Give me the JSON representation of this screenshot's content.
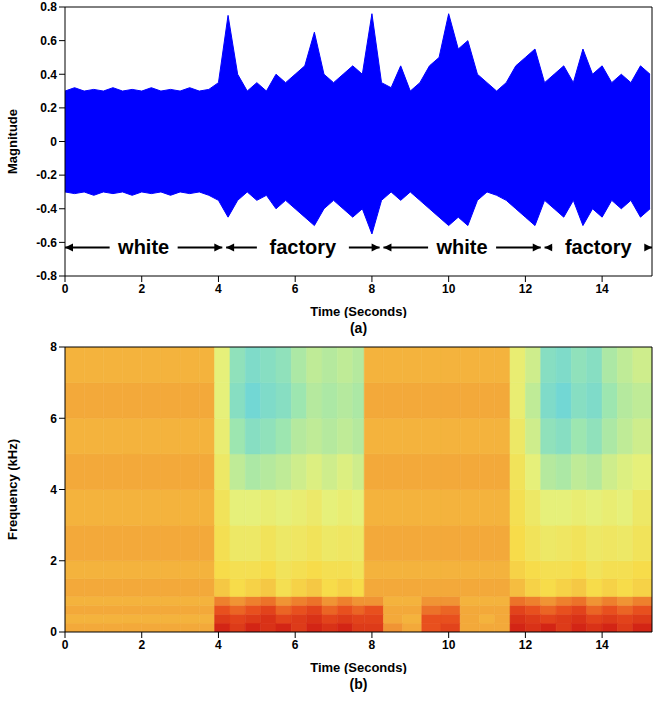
{
  "chart_data": [
    {
      "type": "area",
      "x_label": "Time (Seconds)",
      "y_label": "Magnitude",
      "caption": "(a)",
      "color": "#0000ff",
      "x": [
        0,
        0.25,
        0.5,
        0.75,
        1,
        1.25,
        1.5,
        1.75,
        2,
        2.25,
        2.5,
        2.75,
        3,
        3.25,
        3.5,
        3.75,
        4,
        4.25,
        4.5,
        4.75,
        5,
        5.25,
        5.5,
        5.75,
        6,
        6.25,
        6.5,
        6.75,
        7,
        7.25,
        7.5,
        7.75,
        8,
        8.25,
        8.5,
        8.75,
        9,
        9.25,
        9.5,
        9.75,
        10,
        10.25,
        10.5,
        10.75,
        11,
        11.25,
        11.5,
        11.75,
        12,
        12.25,
        12.5,
        12.75,
        13,
        13.25,
        13.5,
        13.75,
        14,
        14.25,
        14.5,
        14.75,
        15,
        15.25
      ],
      "upper": [
        0.3,
        0.32,
        0.3,
        0.31,
        0.3,
        0.32,
        0.3,
        0.31,
        0.3,
        0.32,
        0.3,
        0.31,
        0.3,
        0.32,
        0.3,
        0.31,
        0.35,
        0.75,
        0.4,
        0.3,
        0.35,
        0.3,
        0.4,
        0.35,
        0.4,
        0.45,
        0.65,
        0.4,
        0.35,
        0.4,
        0.45,
        0.4,
        0.76,
        0.35,
        0.32,
        0.45,
        0.3,
        0.35,
        0.45,
        0.5,
        0.76,
        0.55,
        0.6,
        0.4,
        0.35,
        0.3,
        0.35,
        0.45,
        0.5,
        0.55,
        0.35,
        0.4,
        0.45,
        0.35,
        0.55,
        0.4,
        0.45,
        0.35,
        0.4,
        0.35,
        0.45,
        0.4
      ],
      "lower": [
        -0.3,
        -0.31,
        -0.3,
        -0.32,
        -0.3,
        -0.31,
        -0.3,
        -0.32,
        -0.3,
        -0.31,
        -0.3,
        -0.32,
        -0.3,
        -0.31,
        -0.3,
        -0.32,
        -0.35,
        -0.45,
        -0.35,
        -0.3,
        -0.35,
        -0.32,
        -0.4,
        -0.35,
        -0.4,
        -0.45,
        -0.5,
        -0.4,
        -0.35,
        -0.4,
        -0.45,
        -0.4,
        -0.55,
        -0.35,
        -0.3,
        -0.35,
        -0.3,
        -0.35,
        -0.4,
        -0.45,
        -0.5,
        -0.45,
        -0.5,
        -0.35,
        -0.3,
        -0.32,
        -0.35,
        -0.4,
        -0.45,
        -0.5,
        -0.35,
        -0.4,
        -0.45,
        -0.35,
        -0.5,
        -0.4,
        -0.45,
        -0.35,
        -0.4,
        -0.35,
        -0.45,
        -0.4
      ],
      "xlim": [
        0,
        15.3
      ],
      "xticks": [
        0,
        2,
        4,
        6,
        8,
        10,
        12,
        14
      ],
      "ylim": [
        -0.8,
        0.8
      ],
      "yticks": [
        -0.8,
        -0.6,
        -0.4,
        -0.2,
        0,
        0.2,
        0.4,
        0.6,
        0.8
      ],
      "annotations": [
        {
          "text": "white",
          "x0": 0,
          "x1": 4.1,
          "y": -0.63
        },
        {
          "text": "factory",
          "x0": 4.2,
          "x1": 8.2,
          "y": -0.63
        },
        {
          "text": "white",
          "x0": 8.3,
          "x1": 12.4,
          "y": -0.63
        },
        {
          "text": "factory",
          "x0": 12.5,
          "x1": 15.3,
          "y": -0.63
        }
      ]
    },
    {
      "type": "heatmap",
      "x_label": "Time (Seconds)",
      "y_label": "Frequency (kHz)",
      "caption": "(b)",
      "xlim": [
        0,
        15.3
      ],
      "xticks": [
        0,
        2,
        4,
        6,
        8,
        10,
        12,
        14
      ],
      "ylim": [
        0,
        8
      ],
      "yticks": [
        0,
        2,
        4,
        6,
        8
      ],
      "clim": [
        0,
        1
      ],
      "x_edges": [
        0,
        0.5,
        1,
        1.5,
        2,
        2.5,
        3,
        3.5,
        3.9,
        4.3,
        4.7,
        5.1,
        5.5,
        5.9,
        6.3,
        6.7,
        7.1,
        7.5,
        7.8,
        8.3,
        8.8,
        9.3,
        9.8,
        10.3,
        10.8,
        11.2,
        11.6,
        12,
        12.4,
        12.8,
        13.2,
        13.6,
        14,
        14.4,
        14.8,
        15.3
      ],
      "y_edges": [
        0,
        0.25,
        0.5,
        0.75,
        1,
        1.5,
        2,
        3,
        4,
        5,
        6,
        7,
        8
      ],
      "cells": [
        [
          0.72,
          0.72,
          0.72,
          0.72,
          0.72,
          0.72,
          0.72,
          0.72,
          0.95,
          0.9,
          0.95,
          0.92,
          0.95,
          0.9,
          0.95,
          0.92,
          0.95,
          0.9,
          0.9,
          0.75,
          0.72,
          0.85,
          0.88,
          0.72,
          0.72,
          0.72,
          0.95,
          0.92,
          0.95,
          0.9,
          0.95,
          0.92,
          0.95,
          0.9,
          0.95
        ],
        [
          0.7,
          0.7,
          0.7,
          0.7,
          0.7,
          0.7,
          0.7,
          0.7,
          0.9,
          0.88,
          0.9,
          0.92,
          0.88,
          0.9,
          0.92,
          0.88,
          0.9,
          0.88,
          0.88,
          0.72,
          0.7,
          0.85,
          0.85,
          0.72,
          0.7,
          0.72,
          0.92,
          0.9,
          0.88,
          0.9,
          0.92,
          0.88,
          0.9,
          0.88,
          0.9
        ],
        [
          0.72,
          0.72,
          0.72,
          0.72,
          0.72,
          0.72,
          0.72,
          0.72,
          0.85,
          0.82,
          0.85,
          0.88,
          0.82,
          0.85,
          0.88,
          0.82,
          0.85,
          0.82,
          0.85,
          0.72,
          0.72,
          0.8,
          0.82,
          0.72,
          0.72,
          0.72,
          0.88,
          0.85,
          0.82,
          0.85,
          0.88,
          0.82,
          0.85,
          0.82,
          0.85
        ],
        [
          0.7,
          0.7,
          0.7,
          0.7,
          0.7,
          0.7,
          0.7,
          0.7,
          0.78,
          0.75,
          0.78,
          0.8,
          0.75,
          0.78,
          0.8,
          0.75,
          0.78,
          0.75,
          0.75,
          0.7,
          0.7,
          0.75,
          0.75,
          0.7,
          0.7,
          0.7,
          0.8,
          0.78,
          0.75,
          0.78,
          0.8,
          0.75,
          0.78,
          0.75,
          0.78
        ],
        [
          0.72,
          0.72,
          0.72,
          0.72,
          0.72,
          0.72,
          0.72,
          0.72,
          0.66,
          0.62,
          0.64,
          0.66,
          0.6,
          0.64,
          0.66,
          0.62,
          0.64,
          0.62,
          0.72,
          0.72,
          0.72,
          0.72,
          0.72,
          0.72,
          0.72,
          0.72,
          0.68,
          0.64,
          0.62,
          0.64,
          0.66,
          0.62,
          0.64,
          0.62,
          0.64
        ],
        [
          0.7,
          0.7,
          0.7,
          0.7,
          0.7,
          0.7,
          0.7,
          0.7,
          0.62,
          0.6,
          0.6,
          0.62,
          0.58,
          0.6,
          0.62,
          0.6,
          0.6,
          0.58,
          0.7,
          0.7,
          0.7,
          0.7,
          0.7,
          0.7,
          0.7,
          0.7,
          0.64,
          0.62,
          0.6,
          0.6,
          0.62,
          0.58,
          0.6,
          0.6,
          0.62
        ],
        [
          0.72,
          0.72,
          0.72,
          0.72,
          0.72,
          0.72,
          0.72,
          0.72,
          0.6,
          0.55,
          0.55,
          0.58,
          0.55,
          0.56,
          0.58,
          0.55,
          0.56,
          0.55,
          0.72,
          0.72,
          0.72,
          0.72,
          0.72,
          0.72,
          0.72,
          0.72,
          0.62,
          0.58,
          0.55,
          0.56,
          0.58,
          0.55,
          0.56,
          0.55,
          0.58
        ],
        [
          0.7,
          0.7,
          0.7,
          0.7,
          0.7,
          0.7,
          0.7,
          0.7,
          0.58,
          0.5,
          0.5,
          0.52,
          0.5,
          0.52,
          0.54,
          0.5,
          0.52,
          0.5,
          0.7,
          0.7,
          0.7,
          0.7,
          0.7,
          0.7,
          0.7,
          0.7,
          0.6,
          0.55,
          0.5,
          0.5,
          0.52,
          0.5,
          0.52,
          0.5,
          0.55
        ],
        [
          0.72,
          0.72,
          0.72,
          0.72,
          0.72,
          0.72,
          0.72,
          0.72,
          0.55,
          0.42,
          0.38,
          0.4,
          0.42,
          0.45,
          0.48,
          0.45,
          0.48,
          0.45,
          0.72,
          0.72,
          0.72,
          0.72,
          0.72,
          0.72,
          0.72,
          0.72,
          0.58,
          0.5,
          0.4,
          0.38,
          0.42,
          0.4,
          0.45,
          0.48,
          0.5
        ],
        [
          0.7,
          0.7,
          0.7,
          0.7,
          0.7,
          0.7,
          0.7,
          0.7,
          0.52,
          0.35,
          0.3,
          0.32,
          0.35,
          0.4,
          0.42,
          0.4,
          0.42,
          0.4,
          0.7,
          0.7,
          0.7,
          0.7,
          0.7,
          0.7,
          0.7,
          0.7,
          0.55,
          0.45,
          0.32,
          0.3,
          0.35,
          0.32,
          0.38,
          0.42,
          0.45
        ],
        [
          0.72,
          0.72,
          0.72,
          0.72,
          0.72,
          0.72,
          0.72,
          0.72,
          0.5,
          0.3,
          0.25,
          0.28,
          0.3,
          0.35,
          0.4,
          0.38,
          0.4,
          0.38,
          0.72,
          0.72,
          0.72,
          0.72,
          0.72,
          0.72,
          0.72,
          0.72,
          0.52,
          0.42,
          0.28,
          0.25,
          0.3,
          0.28,
          0.35,
          0.4,
          0.42
        ],
        [
          0.7,
          0.7,
          0.7,
          0.7,
          0.7,
          0.7,
          0.7,
          0.7,
          0.5,
          0.32,
          0.28,
          0.3,
          0.32,
          0.38,
          0.42,
          0.4,
          0.42,
          0.4,
          0.7,
          0.7,
          0.7,
          0.7,
          0.7,
          0.7,
          0.7,
          0.7,
          0.52,
          0.45,
          0.3,
          0.28,
          0.32,
          0.3,
          0.38,
          0.42,
          0.45
        ]
      ]
    }
  ]
}
